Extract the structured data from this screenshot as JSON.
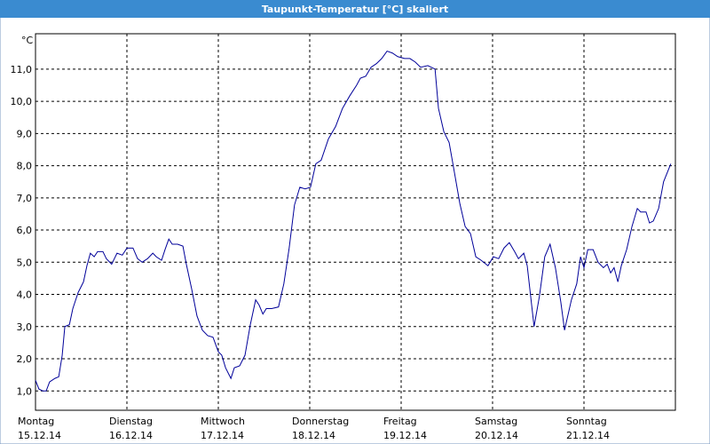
{
  "chart_data": {
    "type": "line",
    "title": "Taupunkt-Temperatur [°C] skaliert",
    "y_label": "°C",
    "xlim": [
      0,
      168
    ],
    "ylim": [
      0.4,
      12.1
    ],
    "grid": true,
    "xticks": [
      {
        "value": 0,
        "label": "Montag",
        "date": "15.12.14"
      },
      {
        "value": 24,
        "label": "Dienstag",
        "date": "16.12.14"
      },
      {
        "value": 48,
        "label": "Mittwoch",
        "date": "17.12.14"
      },
      {
        "value": 72,
        "label": "Donnerstag",
        "date": "18.12.14"
      },
      {
        "value": 96,
        "label": "Freitag",
        "date": "19.12.14"
      },
      {
        "value": 120,
        "label": "Samstag",
        "date": "20.12.14"
      },
      {
        "value": 144,
        "label": "Sonntag",
        "date": "21.12.14"
      }
    ],
    "yticks": [
      {
        "value": 1,
        "label": "1,0"
      },
      {
        "value": 2,
        "label": "2,0"
      },
      {
        "value": 3,
        "label": "3,0"
      },
      {
        "value": 4,
        "label": "4,0"
      },
      {
        "value": 5,
        "label": "5,0"
      },
      {
        "value": 6,
        "label": "6,0"
      },
      {
        "value": 7,
        "label": "7,0"
      },
      {
        "value": 8,
        "label": "8,0"
      },
      {
        "value": 9,
        "label": "9,0"
      },
      {
        "value": 10,
        "label": "10,0"
      },
      {
        "value": 11,
        "label": "11,0"
      }
    ],
    "x": [
      0,
      0.9,
      1.9,
      2.8,
      3.7,
      5.1,
      6.1,
      7.0,
      7.7,
      8.9,
      9.8,
      11.2,
      12.6,
      13.5,
      14.4,
      15.4,
      16.3,
      17.7,
      18.6,
      20.0,
      21.4,
      22.8,
      24.0,
      25.6,
      26.8,
      28.0,
      29.4,
      30.8,
      31.7,
      33.1,
      34.0,
      35.0,
      35.9,
      37.3,
      38.7,
      39.6,
      41.0,
      42.4,
      43.8,
      45.2,
      46.6,
      48.0,
      48.9,
      49.9,
      51.3,
      52.2,
      53.6,
      55.0,
      56.4,
      57.8,
      58.7,
      59.7,
      60.6,
      62.0,
      63.8,
      65.2,
      66.6,
      68.0,
      69.4,
      70.8,
      72.2,
      73.6,
      75.0,
      76.9,
      78.8,
      80.6,
      82.5,
      84.3,
      85.3,
      86.7,
      88.1,
      89.5,
      90.9,
      92.3,
      93.7,
      95.1,
      96.9,
      98.3,
      99.7,
      101.1,
      103.0,
      104.9,
      105.8,
      107.2,
      108.6,
      110.0,
      111.4,
      112.8,
      114.2,
      115.6,
      117.0,
      118.8,
      120.2,
      121.6,
      123.0,
      124.4,
      125.8,
      126.8,
      128.2,
      129.1,
      130.9,
      132.3,
      133.7,
      135.1,
      136.5,
      137.9,
      138.9,
      140.7,
      142.1,
      143.1,
      144.0,
      145.0,
      146.4,
      147.7,
      149.1,
      150.1,
      151.0,
      151.9,
      152.9,
      153.8,
      155.2,
      156.6,
      158.0,
      158.9,
      160.3,
      161.2,
      162.2,
      163.6,
      164.9,
      166.8
    ],
    "series": [
      {
        "color": "#000099",
        "values": [
          1.33,
          1.06,
          1.0,
          1.0,
          1.28,
          1.39,
          1.44,
          2.1,
          3.0,
          3.06,
          3.56,
          4.06,
          4.39,
          4.89,
          5.28,
          5.17,
          5.33,
          5.33,
          5.11,
          4.94,
          5.28,
          5.22,
          5.44,
          5.44,
          5.11,
          5.0,
          5.11,
          5.28,
          5.17,
          5.06,
          5.39,
          5.72,
          5.56,
          5.56,
          5.5,
          4.94,
          4.17,
          3.33,
          2.89,
          2.72,
          2.67,
          2.22,
          2.11,
          1.72,
          1.39,
          1.72,
          1.78,
          2.11,
          3.06,
          3.83,
          3.67,
          3.39,
          3.56,
          3.56,
          3.61,
          4.33,
          5.44,
          6.78,
          7.33,
          7.28,
          7.33,
          8.06,
          8.17,
          8.83,
          9.22,
          9.78,
          10.17,
          10.5,
          10.72,
          10.78,
          11.06,
          11.17,
          11.33,
          11.56,
          11.5,
          11.39,
          11.33,
          11.33,
          11.22,
          11.06,
          11.11,
          11.0,
          9.78,
          9.06,
          8.72,
          7.78,
          6.83,
          6.11,
          5.89,
          5.17,
          5.06,
          4.89,
          5.17,
          5.11,
          5.44,
          5.61,
          5.33,
          5.11,
          5.28,
          4.89,
          3.0,
          3.94,
          5.17,
          5.56,
          4.83,
          3.78,
          2.89,
          3.83,
          4.33,
          5.17,
          4.83,
          5.39,
          5.39,
          5.0,
          4.83,
          4.94,
          4.67,
          4.83,
          4.39,
          4.89,
          5.39,
          6.11,
          6.67,
          6.56,
          6.56,
          6.22,
          6.28,
          6.67,
          7.5,
          8.06
        ]
      }
    ]
  }
}
